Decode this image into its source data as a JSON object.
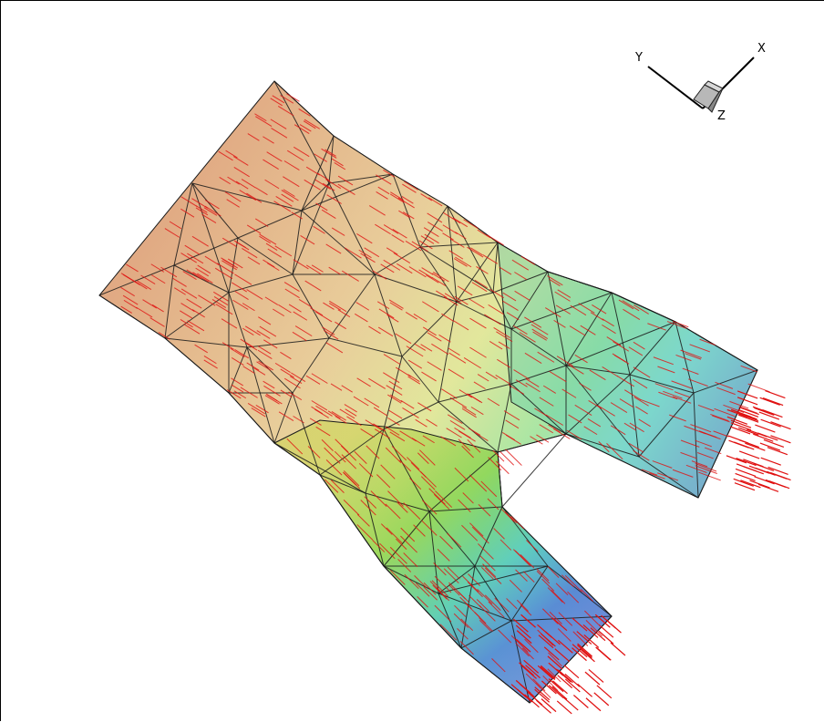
{
  "viewer": {
    "background": "#ffffff",
    "mesh_edge_color": "#1a1a1a",
    "vector_color": "#e01010",
    "colormap": [
      "#2a3fb0",
      "#3aa6d8",
      "#3fc0a0",
      "#7ed33a",
      "#d8dc3a",
      "#d9a33a",
      "#c8641e"
    ]
  },
  "axis_triad": {
    "labels": {
      "x": "X",
      "y": "Y",
      "z": "Z"
    },
    "icon": "orientation-cube-icon"
  }
}
